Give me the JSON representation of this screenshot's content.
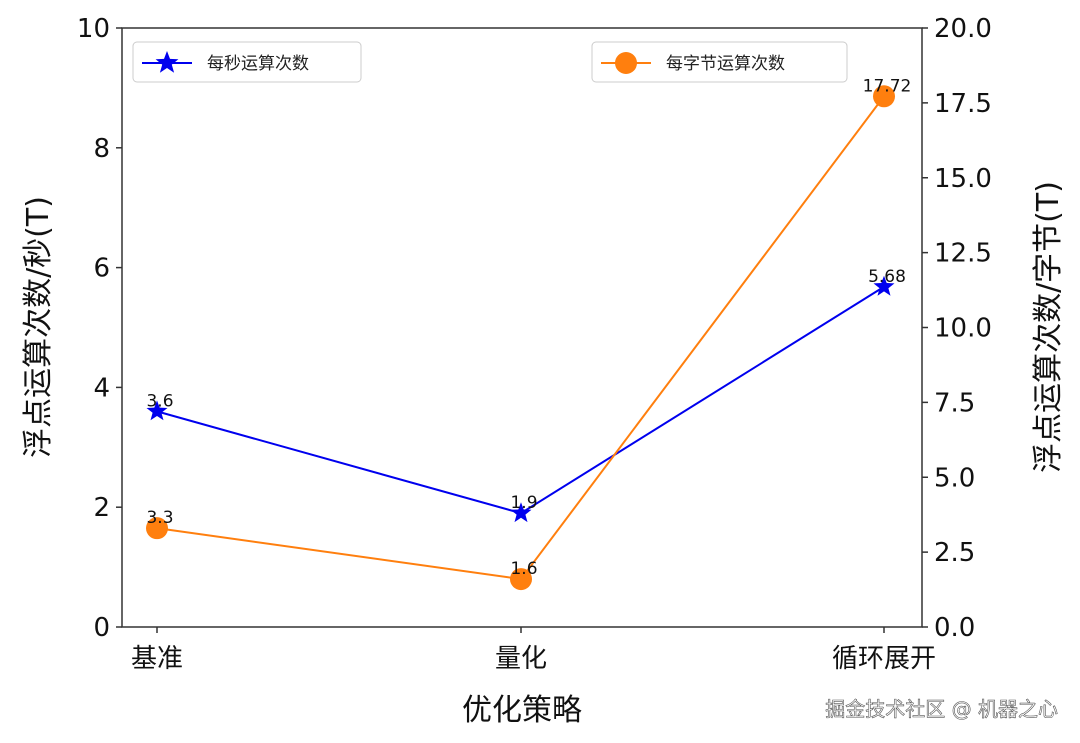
{
  "chart_data": {
    "type": "line",
    "categories": [
      "基准",
      "量化",
      "循环展开"
    ],
    "xlabel": "优化策略",
    "ylabel_left": "浮点运算次数/秒(T)",
    "ylabel_right": "浮点运算次数/字节(T)",
    "ylim_left": [
      0,
      10
    ],
    "ylim_right": [
      0,
      20
    ],
    "yticks_left": [
      "0",
      "2",
      "4",
      "6",
      "8",
      "10"
    ],
    "yticks_right": [
      "0.0",
      "2.5",
      "5.0",
      "7.5",
      "10.0",
      "12.5",
      "15.0",
      "17.5",
      "20.0"
    ],
    "grid": false,
    "series": [
      {
        "name": "每秒运算次数",
        "axis": "left",
        "values": [
          3.6,
          1.9,
          5.68
        ],
        "labels": [
          "3.6",
          "1.9",
          "5.68"
        ],
        "color": "#0000ee",
        "marker": "star",
        "legend": "top-left"
      },
      {
        "name": "每字节运算次数",
        "axis": "right",
        "values": [
          3.3,
          1.6,
          17.72
        ],
        "labels": [
          "3.3",
          "1.6",
          "17.72"
        ],
        "color": "#ff7f0e",
        "marker": "circle",
        "legend": "top-right"
      }
    ]
  },
  "watermark": "掘金技术社区 @ 机器之心"
}
